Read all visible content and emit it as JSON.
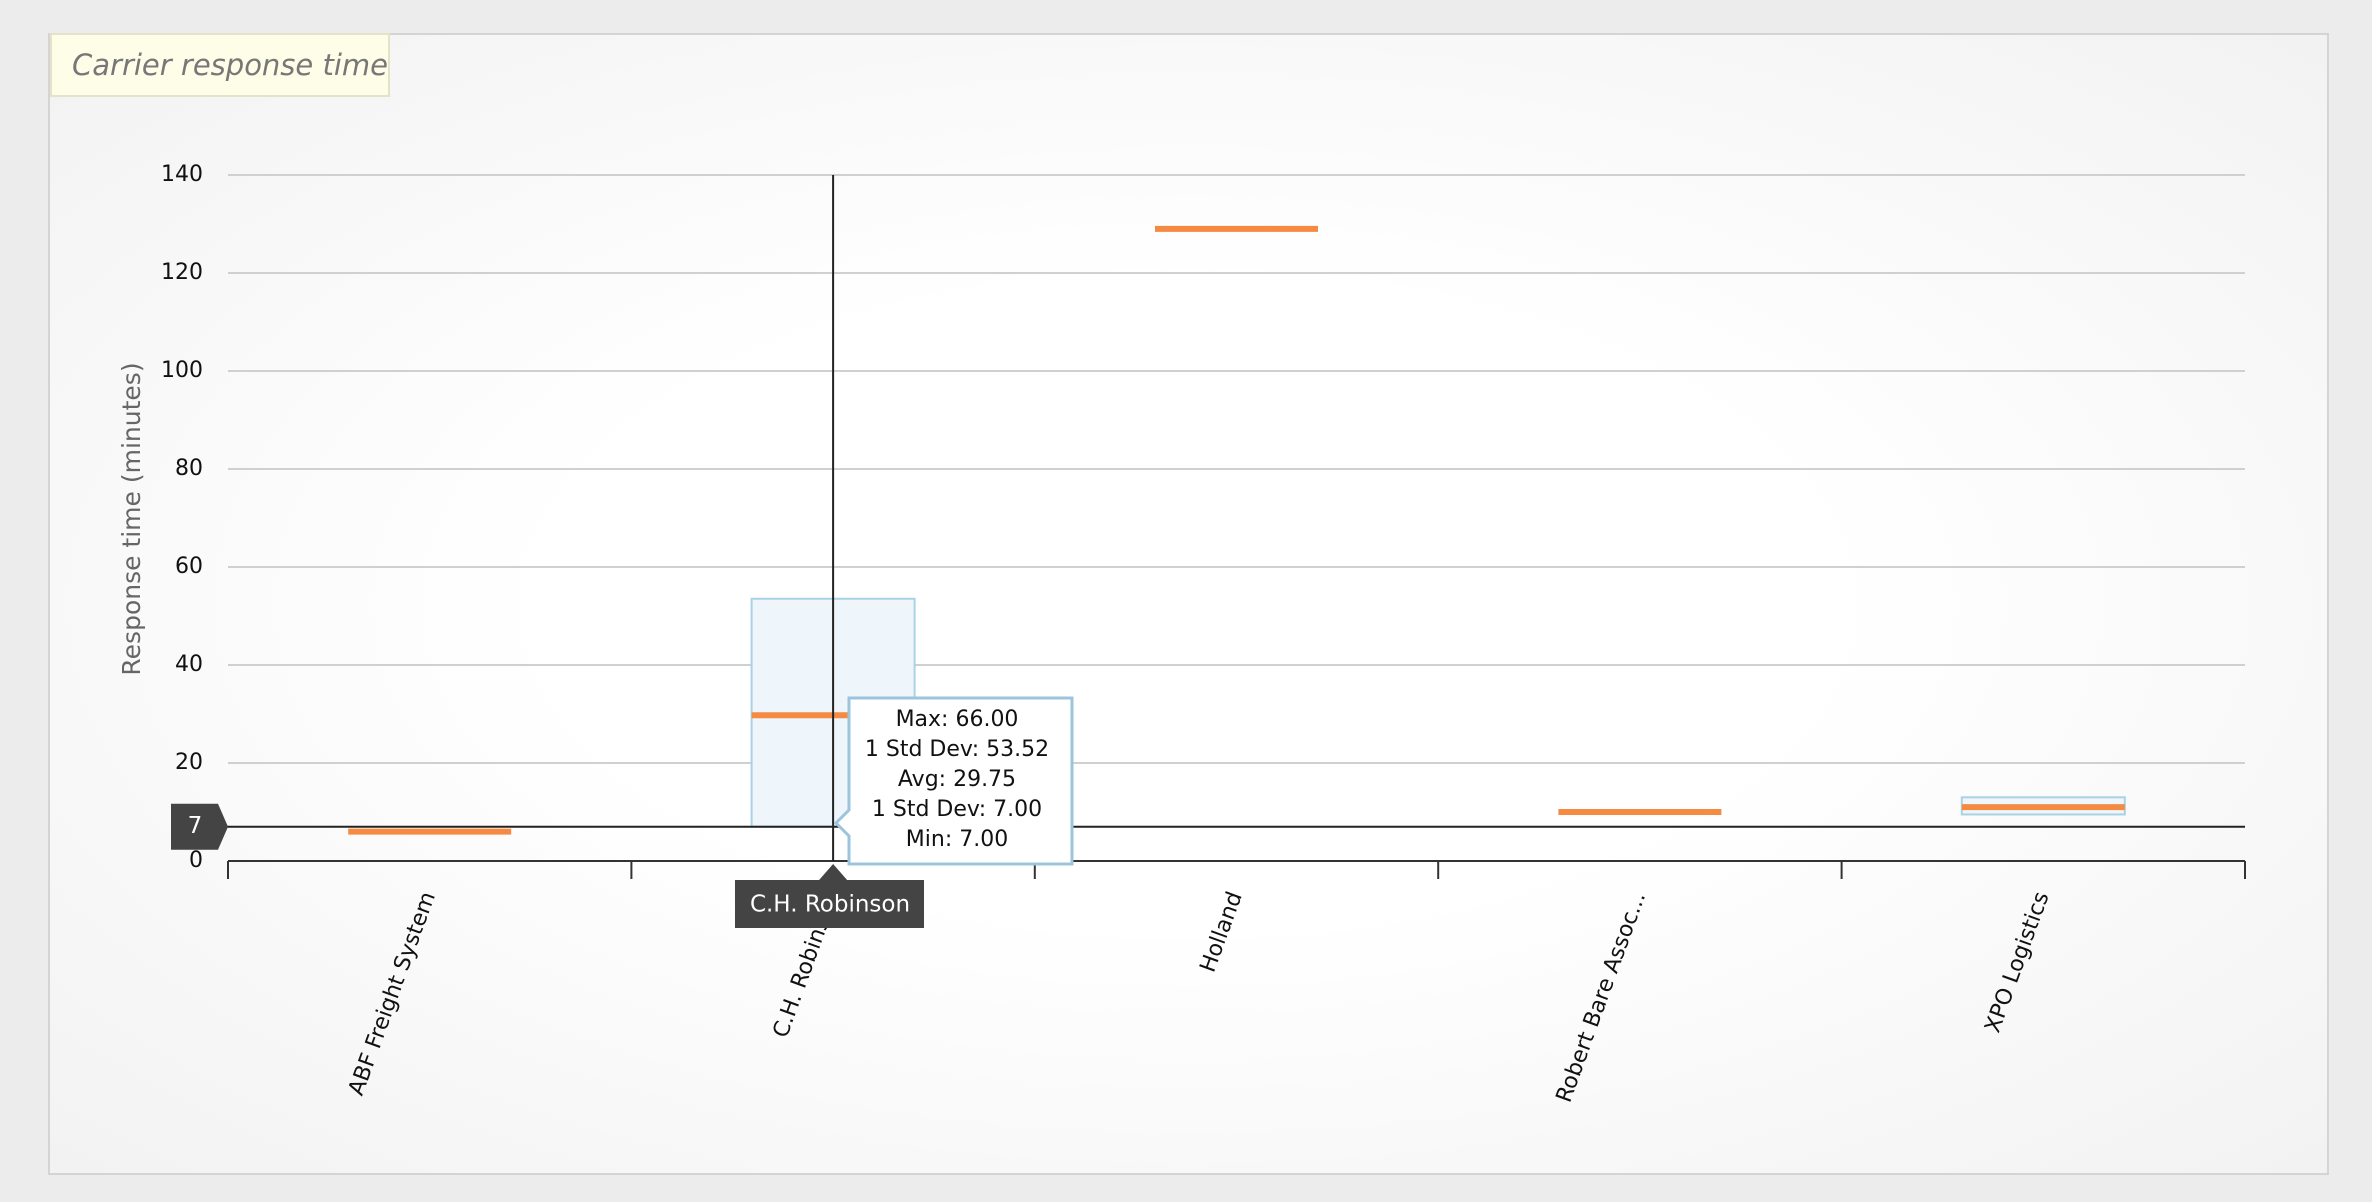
{
  "chart_data": {
    "type": "stddev-box",
    "title": "Carrier response time",
    "y_label": "Response time (minutes)",
    "categories": [
      "ABF Freight System",
      "C.H. Robinson",
      "Holland",
      "Robert Bare Assoc...",
      "XPO Logistics"
    ],
    "avg": [
      6,
      29.75,
      129,
      10,
      11
    ],
    "std_lower": [
      null,
      7,
      null,
      null,
      9.5
    ],
    "std_upper": [
      null,
      53.52,
      null,
      null,
      13
    ],
    "avg_color": "#f58a42",
    "box_fill": "#eef5fb",
    "box_stroke": "#a9d3e4",
    "ylim": [
      0,
      140
    ],
    "yticks": [
      0,
      20,
      40,
      60,
      80,
      100,
      120,
      140
    ],
    "grid": true,
    "crosshair": {
      "y": 7,
      "x": "C.H. Robinson"
    },
    "tooltip": [
      "Max: 66.00",
      "1 Std Dev: 53.52",
      "Avg: 29.75",
      "1 Std Dev: 7.00",
      "Min: 7.00"
    ]
  }
}
